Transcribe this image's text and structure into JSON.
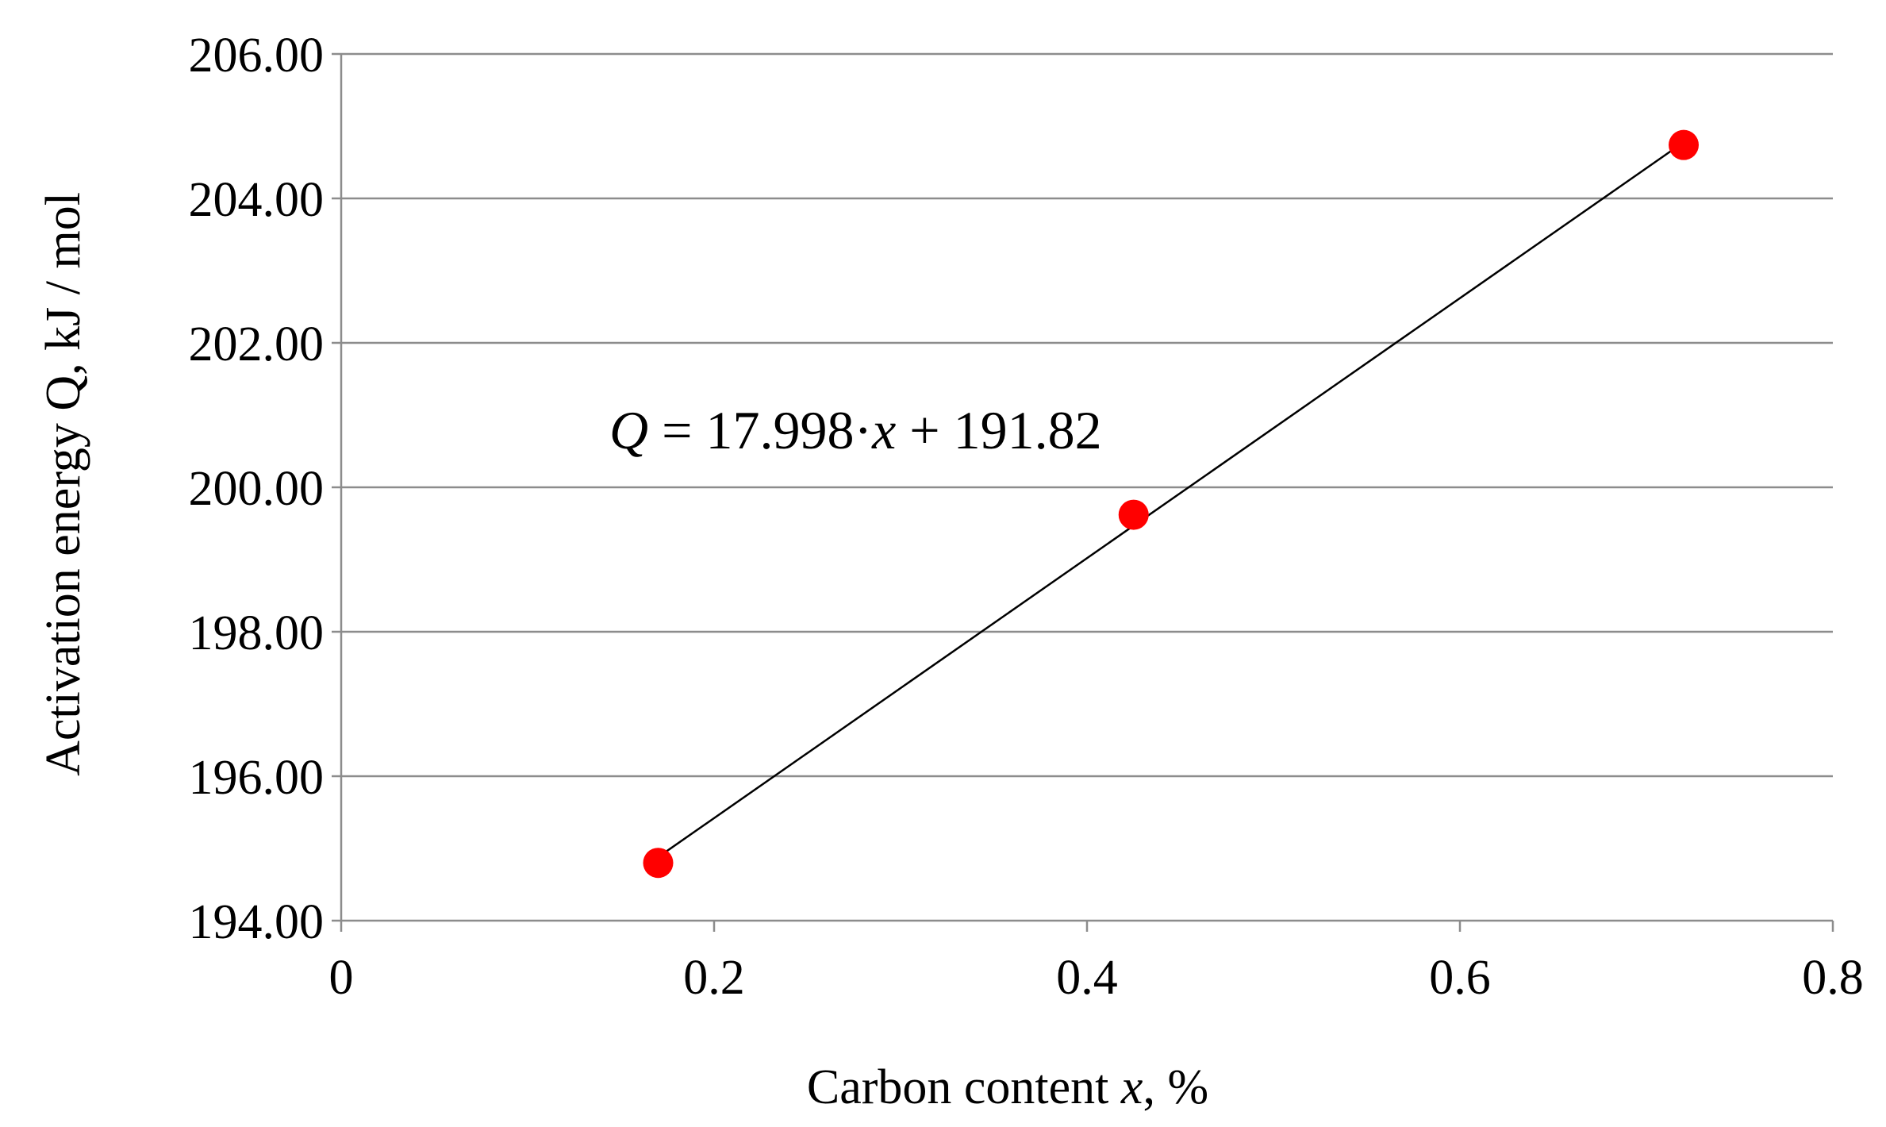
{
  "chart_data": {
    "type": "scatter",
    "title": "",
    "xlabel": {
      "text": "Carbon content ",
      "var": "x",
      "suffix": ", %"
    },
    "ylabel": "Activation energy Q, kJ / mol",
    "xlim": [
      0,
      0.8
    ],
    "ylim": [
      194,
      206
    ],
    "x_ticks": [
      "0",
      "0.2",
      "0.4",
      "0.6",
      "0.8"
    ],
    "y_ticks": [
      "194.00",
      "196.00",
      "198.00",
      "200.00",
      "202.00",
      "204.00",
      "206.00"
    ],
    "grid": {
      "horizontal": true,
      "vertical": false
    },
    "legend": "none",
    "series": [
      {
        "x": [
          0.17,
          0.425,
          0.72
        ],
        "y": [
          194.8,
          199.62,
          204.74
        ],
        "color": "#ff0000"
      }
    ],
    "trendline": {
      "slope": 17.998,
      "intercept": 191.82,
      "x_range": [
        0.17,
        0.72
      ],
      "color": "#000000",
      "equation": {
        "lhs": "Q",
        "mid": " = 17.998·",
        "var": "x",
        "rhs": " + 191.82"
      }
    }
  }
}
